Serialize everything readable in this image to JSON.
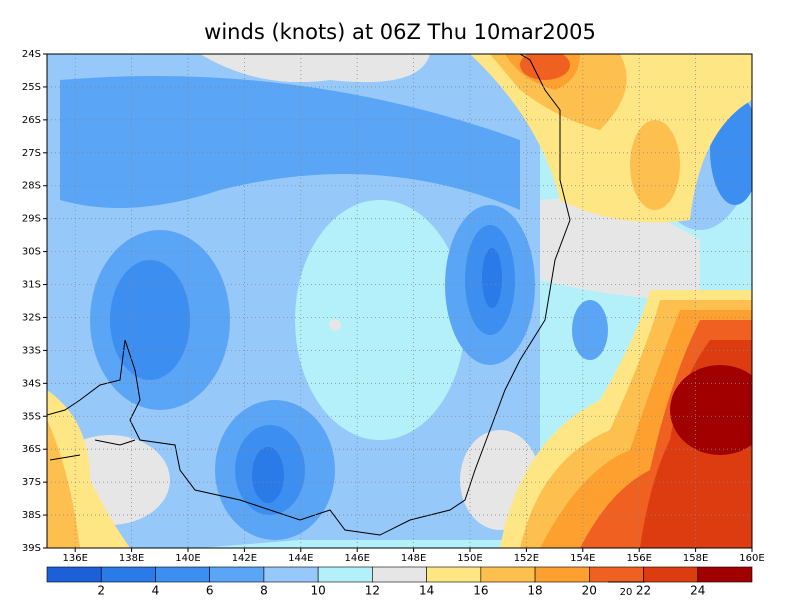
{
  "title": "winds (knots) at 06Z Thu 10mar2005",
  "map": {
    "lonlim": [
      135,
      160
    ],
    "latlim": [
      -39,
      -24
    ],
    "lon_ticks": [
      {
        "value": 136,
        "label": "136E"
      },
      {
        "value": 138,
        "label": "138E"
      },
      {
        "value": 140,
        "label": "140E"
      },
      {
        "value": 142,
        "label": "142E"
      },
      {
        "value": 144,
        "label": "144E"
      },
      {
        "value": 146,
        "label": "146E"
      },
      {
        "value": 148,
        "label": "148E"
      },
      {
        "value": 150,
        "label": "150E"
      },
      {
        "value": 152,
        "label": "152E"
      },
      {
        "value": 154,
        "label": "154E"
      },
      {
        "value": 156,
        "label": "156E"
      },
      {
        "value": 158,
        "label": "158E"
      },
      {
        "value": 160,
        "label": "160E"
      }
    ],
    "lat_ticks": [
      {
        "value": -24,
        "label": "24S"
      },
      {
        "value": -25,
        "label": "25S"
      },
      {
        "value": -26,
        "label": "26S"
      },
      {
        "value": -27,
        "label": "27S"
      },
      {
        "value": -28,
        "label": "28S"
      },
      {
        "value": -29,
        "label": "29S"
      },
      {
        "value": -30,
        "label": "30S"
      },
      {
        "value": -31,
        "label": "31S"
      },
      {
        "value": -32,
        "label": "32S"
      },
      {
        "value": -33,
        "label": "33S"
      },
      {
        "value": -34,
        "label": "34S"
      },
      {
        "value": -35,
        "label": "35S"
      },
      {
        "value": -36,
        "label": "36S"
      },
      {
        "value": -37,
        "label": "37S"
      },
      {
        "value": -38,
        "label": "38S"
      },
      {
        "value": -39,
        "label": "39S"
      }
    ],
    "grid": true
  },
  "colorbar": {
    "lim": [
      0,
      26
    ],
    "ticks": [
      2,
      4,
      6,
      8,
      10,
      12,
      14,
      16,
      18,
      20,
      22,
      24
    ],
    "colors": [
      "#1c5fd8",
      "#2a7ae8",
      "#3c8ff0",
      "#5aa5f5",
      "#96c8fa",
      "#b4f0fa",
      "#e6e6e6",
      "#fee685",
      "#fdc04f",
      "#fda030",
      "#f06020",
      "#dc3c10",
      "#a00000"
    ]
  },
  "vector_reference": {
    "value": 20,
    "label": "20"
  }
}
